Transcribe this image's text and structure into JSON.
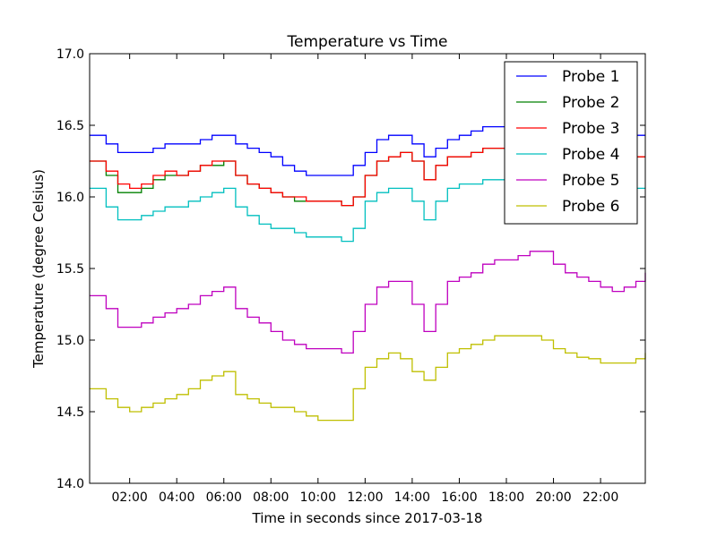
{
  "chart_data": {
    "type": "line",
    "title": "Temperature vs Time",
    "xlabel": "Time in seconds since 2017-03-18",
    "ylabel": "Temperature (degree Celsius)",
    "xlim": [
      0.3,
      23.9
    ],
    "ylim": [
      14.0,
      17.0
    ],
    "x_ticks": [
      2,
      4,
      6,
      8,
      10,
      12,
      14,
      16,
      18,
      20,
      22
    ],
    "x_tick_labels": [
      "02:00",
      "04:00",
      "06:00",
      "08:00",
      "10:00",
      "12:00",
      "14:00",
      "16:00",
      "18:00",
      "20:00",
      "22:00"
    ],
    "y_ticks": [
      14.0,
      14.5,
      15.0,
      15.5,
      16.0,
      16.5,
      17.0
    ],
    "y_tick_labels": [
      "14.0",
      "14.5",
      "15.0",
      "15.5",
      "16.0",
      "16.5",
      "17.0"
    ],
    "grid": false,
    "legend_position": "top-right",
    "x": [
      0.3,
      1.0,
      1.5,
      2.0,
      2.5,
      3.0,
      3.5,
      4.0,
      4.5,
      5.0,
      5.5,
      6.0,
      6.5,
      7.0,
      7.5,
      8.0,
      8.5,
      9.0,
      9.5,
      10.0,
      10.5,
      11.0,
      11.5,
      12.0,
      12.5,
      13.0,
      13.5,
      14.0,
      14.5,
      15.0,
      15.5,
      16.0,
      16.5,
      17.0,
      17.5,
      18.0,
      18.5,
      19.0,
      19.5,
      20.0,
      20.5,
      21.0,
      21.5,
      22.0,
      22.5,
      23.0,
      23.5,
      23.9
    ],
    "series": [
      {
        "name": "Probe 1",
        "color": "#0000ff",
        "values": [
          16.43,
          16.37,
          16.31,
          16.31,
          16.31,
          16.34,
          16.37,
          16.37,
          16.37,
          16.4,
          16.43,
          16.43,
          16.37,
          16.34,
          16.31,
          16.28,
          16.22,
          16.18,
          16.15,
          16.15,
          16.15,
          16.15,
          16.22,
          16.31,
          16.4,
          16.43,
          16.43,
          16.37,
          16.28,
          16.34,
          16.4,
          16.43,
          16.46,
          16.49,
          16.49,
          16.46,
          16.43,
          16.46,
          16.49,
          16.49,
          16.46,
          16.43,
          16.4,
          16.37,
          16.37,
          16.4,
          16.43,
          16.43
        ]
      },
      {
        "name": "Probe 2",
        "color": "#008000",
        "values": [
          16.25,
          16.15,
          16.03,
          16.03,
          16.06,
          16.12,
          16.15,
          16.15,
          16.18,
          16.22,
          16.22,
          16.25,
          16.15,
          16.09,
          16.06,
          16.03,
          16.0,
          15.97,
          15.97,
          15.97,
          15.97,
          15.94,
          16.0,
          16.15,
          16.25,
          16.28,
          16.31,
          16.25,
          16.12,
          16.22,
          16.28,
          16.28,
          16.31,
          16.34,
          16.34,
          16.31,
          16.28,
          16.31,
          16.34,
          16.34,
          16.31,
          16.28,
          16.25,
          16.22,
          16.22,
          16.25,
          16.28,
          16.28
        ]
      },
      {
        "name": "Probe 3",
        "color": "#ff0000",
        "values": [
          16.25,
          16.18,
          16.09,
          16.06,
          16.09,
          16.15,
          16.18,
          16.15,
          16.18,
          16.22,
          16.25,
          16.25,
          16.15,
          16.09,
          16.06,
          16.03,
          16.0,
          16.0,
          15.97,
          15.97,
          15.97,
          15.94,
          16.0,
          16.15,
          16.25,
          16.28,
          16.31,
          16.25,
          16.12,
          16.22,
          16.28,
          16.28,
          16.31,
          16.34,
          16.34,
          16.31,
          16.28,
          16.31,
          16.34,
          16.34,
          16.31,
          16.28,
          16.25,
          16.22,
          16.22,
          16.25,
          16.28,
          16.28
        ]
      },
      {
        "name": "Probe 4",
        "color": "#00bfbf",
        "values": [
          16.06,
          15.93,
          15.84,
          15.84,
          15.87,
          15.9,
          15.93,
          15.93,
          15.97,
          16.0,
          16.03,
          16.06,
          15.93,
          15.87,
          15.81,
          15.78,
          15.78,
          15.75,
          15.72,
          15.72,
          15.72,
          15.69,
          15.78,
          15.97,
          16.03,
          16.06,
          16.06,
          15.97,
          15.84,
          15.97,
          16.06,
          16.09,
          16.09,
          16.12,
          16.12,
          16.12,
          16.09,
          16.12,
          16.15,
          16.15,
          16.12,
          16.09,
          16.06,
          16.03,
          16.03,
          16.06,
          16.06,
          16.06
        ]
      },
      {
        "name": "Probe 5",
        "color": "#bf00bf",
        "values": [
          15.31,
          15.22,
          15.09,
          15.09,
          15.12,
          15.16,
          15.19,
          15.22,
          15.25,
          15.31,
          15.34,
          15.37,
          15.22,
          15.16,
          15.12,
          15.06,
          15.0,
          14.97,
          14.94,
          14.94,
          14.94,
          14.91,
          15.06,
          15.25,
          15.37,
          15.41,
          15.41,
          15.25,
          15.06,
          15.25,
          15.41,
          15.44,
          15.47,
          15.53,
          15.56,
          15.56,
          15.59,
          15.62,
          15.62,
          15.53,
          15.47,
          15.44,
          15.41,
          15.37,
          15.34,
          15.37,
          15.41,
          15.47
        ]
      },
      {
        "name": "Probe 6",
        "color": "#bfbf00",
        "values": [
          14.66,
          14.59,
          14.53,
          14.5,
          14.53,
          14.56,
          14.59,
          14.62,
          14.66,
          14.72,
          14.75,
          14.78,
          14.62,
          14.59,
          14.56,
          14.53,
          14.53,
          14.5,
          14.47,
          14.44,
          14.44,
          14.44,
          14.66,
          14.81,
          14.87,
          14.91,
          14.87,
          14.78,
          14.72,
          14.81,
          14.91,
          14.94,
          14.97,
          15.0,
          15.03,
          15.03,
          15.03,
          15.03,
          15.0,
          14.94,
          14.91,
          14.88,
          14.87,
          14.84,
          14.84,
          14.84,
          14.87,
          14.91
        ]
      }
    ]
  }
}
